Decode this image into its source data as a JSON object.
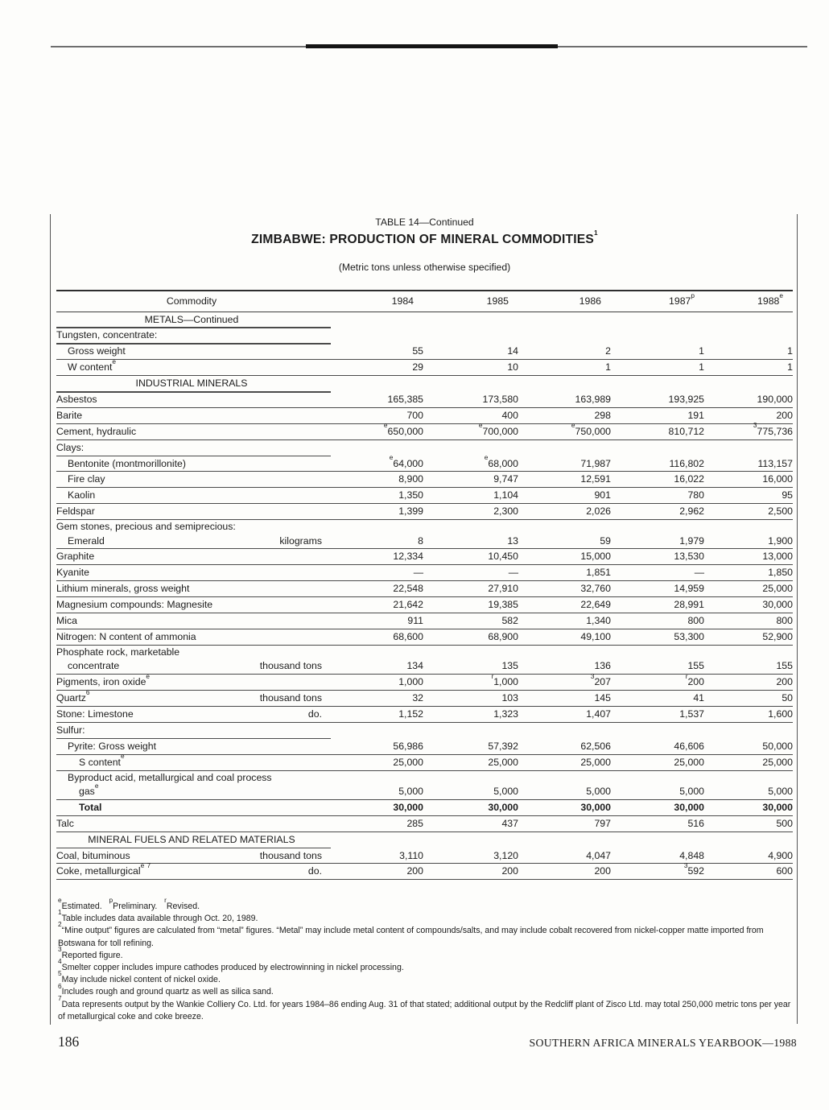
{
  "page": {
    "table_label": "TABLE 14—Continued",
    "title": "ZIMBABWE: PRODUCTION OF MINERAL COMMODITIES{1}",
    "subtitle": "(Metric tons unless otherwise specified)",
    "page_number": "186",
    "footer": "SOUTHERN AFRICA MINERALS YEARBOOK—1988"
  },
  "table": {
    "columns": [
      "Commodity",
      "1984",
      "1985",
      "1986",
      "1987{p}",
      "1988{e}"
    ],
    "rows": [
      {
        "type": "section",
        "label": "METALS—Continued"
      },
      {
        "type": "category",
        "label": "Tungsten, concentrate:"
      },
      {
        "type": "data",
        "label": "Gross weight",
        "indent": 1,
        "values": [
          "55",
          "14",
          "2",
          "1",
          "1"
        ]
      },
      {
        "type": "data",
        "label": "W content{e}",
        "indent": 1,
        "values": [
          "29",
          "10",
          "1",
          "1",
          "1"
        ]
      },
      {
        "type": "section",
        "label": "INDUSTRIAL MINERALS"
      },
      {
        "type": "data",
        "label": "Asbestos",
        "values": [
          "165,385",
          "173,580",
          "163,989",
          "193,925",
          "190,000"
        ]
      },
      {
        "type": "data",
        "label": "Barite",
        "values": [
          "700",
          "400",
          "298",
          "191",
          "200"
        ]
      },
      {
        "type": "data",
        "label": "Cement, hydraulic",
        "values": [
          "{e}650,000",
          "{e}700,000",
          "{e}750,000",
          "810,712",
          "{3}775,736"
        ]
      },
      {
        "type": "category",
        "label": "Clays:"
      },
      {
        "type": "data",
        "label": "Bentonite (montmorillonite)",
        "indent": 1,
        "values": [
          "{e}64,000",
          "{e}68,000",
          "71,987",
          "116,802",
          "113,157"
        ]
      },
      {
        "type": "data",
        "label": "Fire clay",
        "indent": 1,
        "values": [
          "8,900",
          "9,747",
          "12,591",
          "16,022",
          "16,000"
        ]
      },
      {
        "type": "data",
        "label": "Kaolin",
        "indent": 1,
        "values": [
          "1,350",
          "1,104",
          "901",
          "780",
          "95"
        ]
      },
      {
        "type": "data",
        "label": "Feldspar",
        "values": [
          "1,399",
          "2,300",
          "2,026",
          "2,962",
          "2,500"
        ]
      },
      {
        "type": "data",
        "label": "Gem stones, precious and semiprecious:",
        "label2": "Emerald",
        "indent2": 1,
        "unit": "kilograms",
        "values": [
          "8",
          "13",
          "59",
          "1,979",
          "1,900"
        ]
      },
      {
        "type": "data",
        "label": "Graphite",
        "values": [
          "12,334",
          "10,450",
          "15,000",
          "13,530",
          "13,000"
        ]
      },
      {
        "type": "data",
        "label": "Kyanite",
        "values": [
          "—",
          "—",
          "1,851",
          "—",
          "1,850"
        ]
      },
      {
        "type": "data",
        "label": "Lithium minerals, gross weight",
        "values": [
          "22,548",
          "27,910",
          "32,760",
          "14,959",
          "25,000"
        ]
      },
      {
        "type": "data",
        "label": "Magnesium compounds: Magnesite",
        "values": [
          "21,642",
          "19,385",
          "22,649",
          "28,991",
          "30,000"
        ]
      },
      {
        "type": "data",
        "label": "Mica",
        "values": [
          "911",
          "582",
          "1,340",
          "800",
          "800"
        ]
      },
      {
        "type": "data",
        "label": "Nitrogen: N content of ammonia",
        "values": [
          "68,600",
          "68,900",
          "49,100",
          "53,300",
          "52,900"
        ]
      },
      {
        "type": "data",
        "label": "Phosphate rock, marketable",
        "label2": "concentrate",
        "indent2": 1,
        "unit": "thousand tons",
        "values": [
          "134",
          "135",
          "136",
          "155",
          "155"
        ]
      },
      {
        "type": "data",
        "label": "Pigments, iron oxide{e}",
        "values": [
          "1,000",
          "{r}1,000",
          "{3}207",
          "{r}200",
          "200"
        ]
      },
      {
        "type": "data",
        "label": "Quartz{6}",
        "unit": "thousand tons",
        "values": [
          "32",
          "103",
          "145",
          "41",
          "50"
        ]
      },
      {
        "type": "data",
        "label": "Stone: Limestone",
        "unit": "do.",
        "values": [
          "1,152",
          "1,323",
          "1,407",
          "1,537",
          "1,600"
        ]
      },
      {
        "type": "category",
        "label": "Sulfur:"
      },
      {
        "type": "data",
        "label": "Pyrite: Gross weight",
        "indent": 1,
        "values": [
          "56,986",
          "57,392",
          "62,506",
          "46,606",
          "50,000"
        ]
      },
      {
        "type": "data",
        "label": "S content{e}",
        "indent": 2,
        "values": [
          "25,000",
          "25,000",
          "25,000",
          "25,000",
          "25,000"
        ]
      },
      {
        "type": "data",
        "label": "Byproduct acid, metallurgical and coal process",
        "indent": 1,
        "label2": "gas{e}",
        "indent2": 2,
        "values": [
          "5,000",
          "5,000",
          "5,000",
          "5,000",
          "5,000"
        ]
      },
      {
        "type": "data",
        "label": "Total",
        "indent": 2,
        "bold": true,
        "values": [
          "30,000",
          "30,000",
          "30,000",
          "30,000",
          "30,000"
        ]
      },
      {
        "type": "data",
        "label": "Talc",
        "values": [
          "285",
          "437",
          "797",
          "516",
          "500"
        ]
      },
      {
        "type": "section",
        "label": "MINERAL FUELS AND RELATED MATERIALS"
      },
      {
        "type": "data",
        "label": "Coal, bituminous",
        "unit": "thousand tons",
        "values": [
          "3,110",
          "3,120",
          "4,047",
          "4,848",
          "4,900"
        ]
      },
      {
        "type": "data",
        "label": "Coke, metallurgical{e} {7}",
        "unit": "do.",
        "values": [
          "200",
          "200",
          "200",
          "{3}592",
          "600"
        ]
      }
    ]
  },
  "footnotes": [
    "{e}Estimated.   {p}Preliminary.   {r}Revised.",
    "{1}Table includes data available through Oct. 20, 1989.",
    "{2}“Mine output” figures are calculated from “metal” figures. “Metal” may include metal content of compounds/salts, and may include cobalt recovered from nickel-copper matte imported from Botswana for toll refining.",
    "{3}Reported figure.",
    "{4}Smelter copper includes impure cathodes produced by electrowinning in nickel processing.",
    "{5}May include nickel content of nickel oxide.",
    "{6}Includes rough and ground quartz as well as silica sand.",
    "{7}Data represents output by the Wankie Colliery Co. Ltd. for years 1984–86 ending Aug. 31 of that stated; additional output by the Redcliff plant of Zisco Ltd. may total 250,000 metric tons per year of metallurgical coke and coke breeze."
  ]
}
